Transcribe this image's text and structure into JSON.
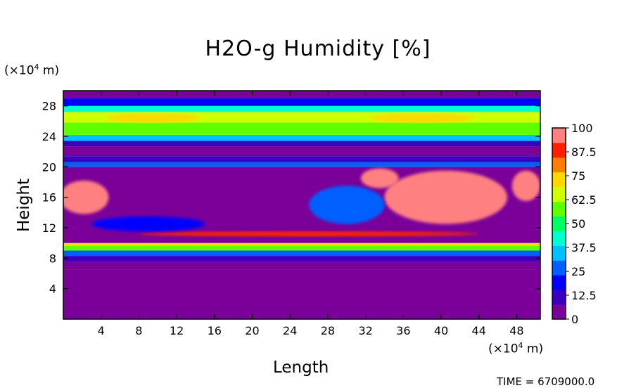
{
  "chart_data": {
    "type": "heatmap",
    "title": "H2O-g Humidity [%]",
    "xlabel": "Length",
    "ylabel": "Height",
    "x_unit": {
      "pre": "(×10",
      "exp": "4",
      "post": " m)"
    },
    "y_unit": {
      "pre": "(×10",
      "exp": "4",
      "post": " m)"
    },
    "xlim": [
      0,
      50.5
    ],
    "ylim": [
      0,
      30
    ],
    "xticks": [
      4,
      8,
      12,
      16,
      20,
      24,
      28,
      32,
      36,
      40,
      44,
      48
    ],
    "yticks": [
      4,
      8,
      12,
      16,
      20,
      24,
      28
    ],
    "colorbar": {
      "min": 0,
      "max": 100,
      "ticks": [
        "100",
        "87.5",
        "75",
        "62.5",
        "50",
        "37.5",
        "25",
        "12.5",
        "0"
      ],
      "colors": [
        "#7a0099",
        "#3a00c0",
        "#0000ff",
        "#0060ff",
        "#00c0ff",
        "#00ffd0",
        "#00ff60",
        "#60ff00",
        "#d0ff00",
        "#ffd800",
        "#ff8000",
        "#ff2000",
        "#ff8080"
      ]
    },
    "bands": [
      {
        "y0": 0,
        "y1": 6.5,
        "value": 1
      },
      {
        "y0": 6.5,
        "y1": 7.5,
        "value": 6
      },
      {
        "y0": 7.5,
        "y1": 8.3,
        "value": 13
      },
      {
        "y0": 8.3,
        "y1": 9.0,
        "value": 28
      },
      {
        "y0": 9.0,
        "y1": 9.6,
        "value": 55
      },
      {
        "y0": 9.6,
        "y1": 10.0,
        "value": 72
      },
      {
        "y0": 10.0,
        "y1": 20.0,
        "value": 3
      },
      {
        "y0": 20.0,
        "y1": 20.6,
        "value": 30
      },
      {
        "y0": 20.6,
        "y1": 21.4,
        "value": 12
      },
      {
        "y0": 21.4,
        "y1": 22.7,
        "value": 3
      },
      {
        "y0": 22.7,
        "y1": 23.4,
        "value": 12
      },
      {
        "y0": 23.4,
        "y1": 24.2,
        "value": 35
      },
      {
        "y0": 24.2,
        "y1": 25.8,
        "value": 55
      },
      {
        "y0": 25.8,
        "y1": 27.2,
        "value": 62
      },
      {
        "y0": 27.2,
        "y1": 28.0,
        "value": 45
      },
      {
        "y0": 28.0,
        "y1": 29.0,
        "value": 22
      },
      {
        "y0": 29.0,
        "y1": 30.0,
        "value": 6
      }
    ],
    "regions": [
      {
        "cx": 2.2,
        "cy": 16.0,
        "rx": 2.6,
        "ry": 2.2,
        "value": 100
      },
      {
        "cx": 40.5,
        "cy": 16.0,
        "rx": 6.5,
        "ry": 3.5,
        "value": 100
      },
      {
        "cx": 33.5,
        "cy": 18.5,
        "rx": 2.0,
        "ry": 1.3,
        "value": 100
      },
      {
        "cx": 49.0,
        "cy": 17.5,
        "rx": 1.5,
        "ry": 2.0,
        "value": 100
      },
      {
        "cx": 9.5,
        "cy": 26.4,
        "rx": 5.0,
        "ry": 0.6,
        "value": 75
      },
      {
        "cx": 38.0,
        "cy": 26.4,
        "rx": 5.5,
        "ry": 0.6,
        "value": 75
      },
      {
        "cx": 26.0,
        "cy": 11.2,
        "rx": 18.0,
        "ry": 0.35,
        "value": 88
      },
      {
        "cx": 30.0,
        "cy": 15.0,
        "rx": 4.0,
        "ry": 2.5,
        "value": 30
      },
      {
        "cx": 9.0,
        "cy": 12.5,
        "rx": 6.0,
        "ry": 1.0,
        "value": 22
      }
    ],
    "footer": "TIME = 6709000.0"
  }
}
